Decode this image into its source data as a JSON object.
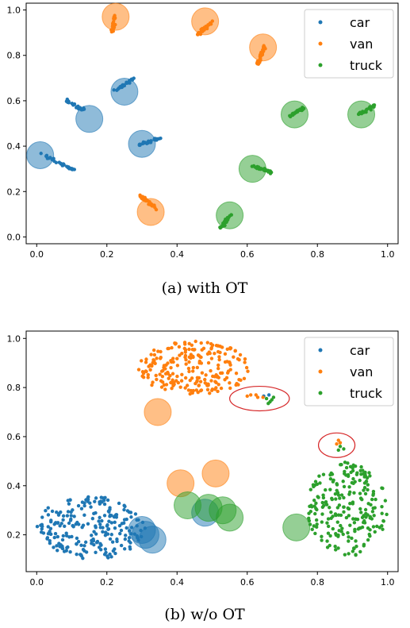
{
  "chart_data": [
    {
      "type": "scatter",
      "caption": "(a)  with OT",
      "xlim": [
        -0.03,
        1.03
      ],
      "ylim": [
        -0.03,
        1.03
      ],
      "xticks": [
        "0.0",
        "0.2",
        "0.4",
        "0.6",
        "0.8",
        "1.0"
      ],
      "yticks": [
        "0.0",
        "0.2",
        "0.4",
        "0.6",
        "0.8",
        "1.0"
      ],
      "grid": false,
      "legend_position": "top-right",
      "legend": [
        "car",
        "van",
        "truck"
      ],
      "series": [
        {
          "name": "car",
          "color": "#1f77b4",
          "clusters": [
            {
              "cx": 0.06,
              "cy": 0.33,
              "dx": 0.09,
              "dy": -0.07,
              "n": 35
            },
            {
              "cx": 0.11,
              "cy": 0.58,
              "dx": 0.05,
              "dy": -0.04,
              "n": 25
            },
            {
              "cx": 0.25,
              "cy": 0.67,
              "dx": 0.05,
              "dy": 0.05,
              "n": 30
            },
            {
              "cx": 0.32,
              "cy": 0.42,
              "dx": 0.06,
              "dy": 0.03,
              "n": 30
            }
          ],
          "centroids": [
            [
              0.01,
              0.36
            ],
            [
              0.15,
              0.52
            ],
            [
              0.25,
              0.64
            ],
            [
              0.3,
              0.41
            ]
          ]
        },
        {
          "name": "van",
          "color": "#ff7f0e",
          "clusters": [
            {
              "cx": 0.22,
              "cy": 0.94,
              "dx": 0.01,
              "dy": 0.07,
              "n": 30
            },
            {
              "cx": 0.48,
              "cy": 0.92,
              "dx": 0.05,
              "dy": 0.06,
              "n": 35
            },
            {
              "cx": 0.64,
              "cy": 0.8,
              "dx": 0.02,
              "dy": 0.08,
              "n": 30
            },
            {
              "cx": 0.32,
              "cy": 0.15,
              "dx": 0.05,
              "dy": -0.06,
              "n": 30
            }
          ],
          "centroids": [
            [
              0.225,
              0.97
            ],
            [
              0.48,
              0.95
            ],
            [
              0.645,
              0.835
            ],
            [
              0.325,
              0.11
            ]
          ]
        },
        {
          "name": "truck",
          "color": "#2ca02c",
          "clusters": [
            {
              "cx": 0.74,
              "cy": 0.55,
              "dx": 0.04,
              "dy": 0.04,
              "n": 30
            },
            {
              "cx": 0.94,
              "cy": 0.56,
              "dx": 0.05,
              "dy": 0.04,
              "n": 30
            },
            {
              "cx": 0.64,
              "cy": 0.3,
              "dx": 0.06,
              "dy": -0.03,
              "n": 30
            },
            {
              "cx": 0.54,
              "cy": 0.07,
              "dx": 0.03,
              "dy": 0.06,
              "n": 30
            }
          ],
          "centroids": [
            [
              0.735,
              0.54
            ],
            [
              0.925,
              0.54
            ],
            [
              0.615,
              0.3
            ],
            [
              0.55,
              0.095
            ]
          ]
        }
      ],
      "highlight_circles": []
    },
    {
      "type": "scatter",
      "caption": "(b)  w/o OT",
      "xlim": [
        -0.03,
        1.03
      ],
      "ylim": [
        0.05,
        1.03
      ],
      "xticks": [
        "0.0",
        "0.2",
        "0.4",
        "0.6",
        "0.8",
        "1.0"
      ],
      "yticks": [
        "0.2",
        "0.4",
        "0.6",
        "0.8",
        "1.0"
      ],
      "grid": false,
      "legend_position": "top-right",
      "legend": [
        "car",
        "van",
        "truck"
      ],
      "series": [
        {
          "name": "car",
          "color": "#1f77b4",
          "blobs": [
            {
              "x0": 0.0,
              "x1": 0.31,
              "y0": 0.1,
              "y1": 0.36,
              "n": 230
            }
          ],
          "outlier_group": [
            [
              0.647,
              0.765
            ],
            [
              0.662,
              0.77
            ]
          ],
          "centroids": [
            [
              0.3,
              0.22
            ],
            [
              0.31,
              0.2
            ],
            [
              0.33,
              0.18
            ],
            [
              0.48,
              0.29
            ]
          ]
        },
        {
          "name": "van",
          "color": "#ff7f0e",
          "blobs": [
            {
              "x0": 0.29,
              "x1": 0.61,
              "y0": 0.77,
              "y1": 0.99,
              "n": 230
            }
          ],
          "outlier_group": [
            [
              0.61,
              0.77
            ],
            [
              0.63,
              0.76
            ],
            [
              0.645,
              0.76
            ],
            [
              0.6,
              0.765
            ],
            [
              0.625,
              0.77
            ],
            [
              0.86,
              0.585
            ],
            [
              0.865,
              0.575
            ],
            [
              0.855,
              0.57
            ]
          ],
          "centroids": [
            [
              0.345,
              0.7
            ],
            [
              0.41,
              0.41
            ],
            [
              0.51,
              0.45
            ]
          ]
        },
        {
          "name": "truck",
          "color": "#2ca02c",
          "blobs": [
            {
              "x0": 0.77,
              "x1": 1.0,
              "y0": 0.11,
              "y1": 0.5,
              "n": 230
            }
          ],
          "outlier_group": [
            [
              0.655,
              0.755
            ],
            [
              0.67,
              0.75
            ],
            [
              0.665,
              0.742
            ],
            [
              0.66,
              0.735
            ],
            [
              0.675,
              0.76
            ],
            [
              0.865,
              0.56
            ],
            [
              0.875,
              0.55
            ],
            [
              0.86,
              0.545
            ]
          ],
          "centroids": [
            [
              0.43,
              0.32
            ],
            [
              0.49,
              0.31
            ],
            [
              0.53,
              0.3
            ],
            [
              0.55,
              0.27
            ],
            [
              0.74,
              0.23
            ]
          ]
        }
      ],
      "highlight_circles": [
        {
          "cx": 0.635,
          "cy": 0.755,
          "rx": 0.085,
          "ry": 0.05,
          "color": "#d62728"
        },
        {
          "cx": 0.855,
          "cy": 0.565,
          "rx": 0.052,
          "ry": 0.05,
          "color": "#d62728"
        }
      ]
    }
  ]
}
